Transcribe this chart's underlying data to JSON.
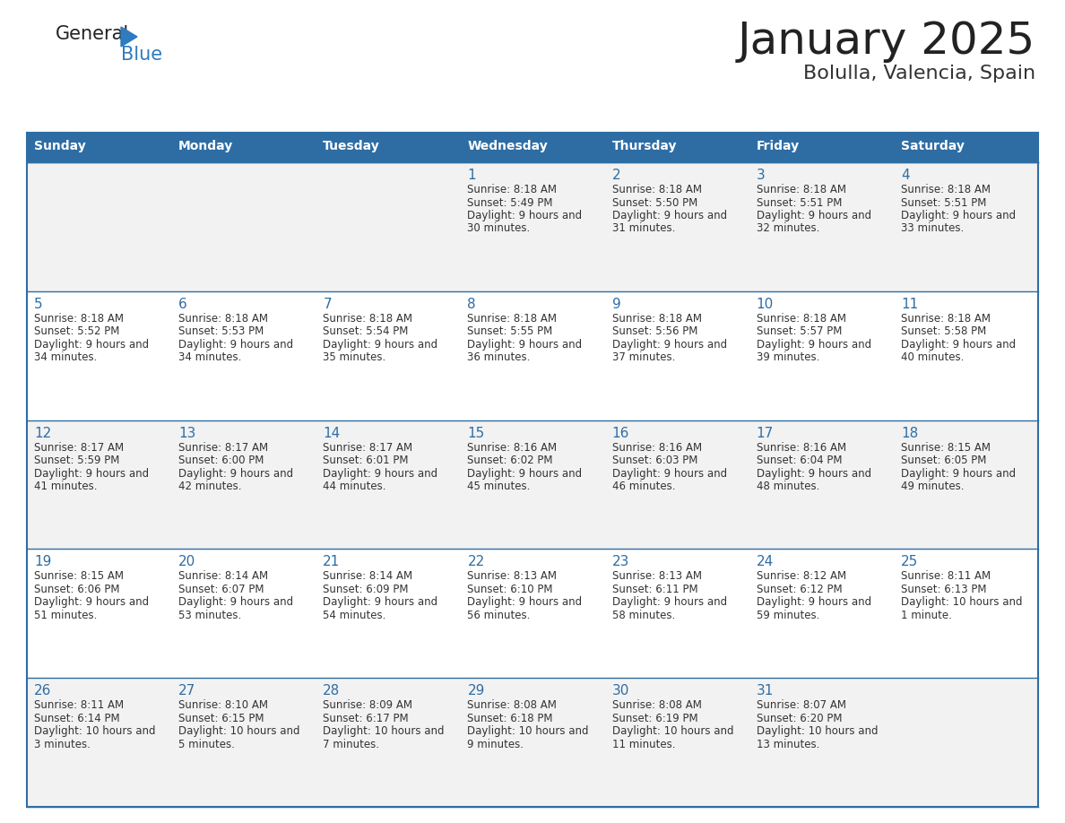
{
  "title": "January 2025",
  "subtitle": "Bolulla, Valencia, Spain",
  "header_bg": "#2e6da4",
  "header_text": "#ffffff",
  "cell_bg_gray": "#f2f2f2",
  "cell_bg_white": "#ffffff",
  "border_color": "#2e6da4",
  "day_names": [
    "Sunday",
    "Monday",
    "Tuesday",
    "Wednesday",
    "Thursday",
    "Friday",
    "Saturday"
  ],
  "title_color": "#222222",
  "subtitle_color": "#333333",
  "day_number_color": "#2e6da4",
  "cell_text_color": "#333333",
  "logo_text_color": "#222222",
  "logo_blue_color": "#2e7bbf",
  "calendar": [
    [
      null,
      null,
      null,
      {
        "day": "1",
        "sunrise": "8:18 AM",
        "sunset": "5:49 PM",
        "daylight": "9 hours and 30 minutes."
      },
      {
        "day": "2",
        "sunrise": "8:18 AM",
        "sunset": "5:50 PM",
        "daylight": "9 hours and 31 minutes."
      },
      {
        "day": "3",
        "sunrise": "8:18 AM",
        "sunset": "5:51 PM",
        "daylight": "9 hours and 32 minutes."
      },
      {
        "day": "4",
        "sunrise": "8:18 AM",
        "sunset": "5:51 PM",
        "daylight": "9 hours and 33 minutes."
      }
    ],
    [
      {
        "day": "5",
        "sunrise": "8:18 AM",
        "sunset": "5:52 PM",
        "daylight": "9 hours and 34 minutes."
      },
      {
        "day": "6",
        "sunrise": "8:18 AM",
        "sunset": "5:53 PM",
        "daylight": "9 hours and 34 minutes."
      },
      {
        "day": "7",
        "sunrise": "8:18 AM",
        "sunset": "5:54 PM",
        "daylight": "9 hours and 35 minutes."
      },
      {
        "day": "8",
        "sunrise": "8:18 AM",
        "sunset": "5:55 PM",
        "daylight": "9 hours and 36 minutes."
      },
      {
        "day": "9",
        "sunrise": "8:18 AM",
        "sunset": "5:56 PM",
        "daylight": "9 hours and 37 minutes."
      },
      {
        "day": "10",
        "sunrise": "8:18 AM",
        "sunset": "5:57 PM",
        "daylight": "9 hours and 39 minutes."
      },
      {
        "day": "11",
        "sunrise": "8:18 AM",
        "sunset": "5:58 PM",
        "daylight": "9 hours and 40 minutes."
      }
    ],
    [
      {
        "day": "12",
        "sunrise": "8:17 AM",
        "sunset": "5:59 PM",
        "daylight": "9 hours and 41 minutes."
      },
      {
        "day": "13",
        "sunrise": "8:17 AM",
        "sunset": "6:00 PM",
        "daylight": "9 hours and 42 minutes."
      },
      {
        "day": "14",
        "sunrise": "8:17 AM",
        "sunset": "6:01 PM",
        "daylight": "9 hours and 44 minutes."
      },
      {
        "day": "15",
        "sunrise": "8:16 AM",
        "sunset": "6:02 PM",
        "daylight": "9 hours and 45 minutes."
      },
      {
        "day": "16",
        "sunrise": "8:16 AM",
        "sunset": "6:03 PM",
        "daylight": "9 hours and 46 minutes."
      },
      {
        "day": "17",
        "sunrise": "8:16 AM",
        "sunset": "6:04 PM",
        "daylight": "9 hours and 48 minutes."
      },
      {
        "day": "18",
        "sunrise": "8:15 AM",
        "sunset": "6:05 PM",
        "daylight": "9 hours and 49 minutes."
      }
    ],
    [
      {
        "day": "19",
        "sunrise": "8:15 AM",
        "sunset": "6:06 PM",
        "daylight": "9 hours and 51 minutes."
      },
      {
        "day": "20",
        "sunrise": "8:14 AM",
        "sunset": "6:07 PM",
        "daylight": "9 hours and 53 minutes."
      },
      {
        "day": "21",
        "sunrise": "8:14 AM",
        "sunset": "6:09 PM",
        "daylight": "9 hours and 54 minutes."
      },
      {
        "day": "22",
        "sunrise": "8:13 AM",
        "sunset": "6:10 PM",
        "daylight": "9 hours and 56 minutes."
      },
      {
        "day": "23",
        "sunrise": "8:13 AM",
        "sunset": "6:11 PM",
        "daylight": "9 hours and 58 minutes."
      },
      {
        "day": "24",
        "sunrise": "8:12 AM",
        "sunset": "6:12 PM",
        "daylight": "9 hours and 59 minutes."
      },
      {
        "day": "25",
        "sunrise": "8:11 AM",
        "sunset": "6:13 PM",
        "daylight": "10 hours and 1 minute."
      }
    ],
    [
      {
        "day": "26",
        "sunrise": "8:11 AM",
        "sunset": "6:14 PM",
        "daylight": "10 hours and 3 minutes."
      },
      {
        "day": "27",
        "sunrise": "8:10 AM",
        "sunset": "6:15 PM",
        "daylight": "10 hours and 5 minutes."
      },
      {
        "day": "28",
        "sunrise": "8:09 AM",
        "sunset": "6:17 PM",
        "daylight": "10 hours and 7 minutes."
      },
      {
        "day": "29",
        "sunrise": "8:08 AM",
        "sunset": "6:18 PM",
        "daylight": "10 hours and 9 minutes."
      },
      {
        "day": "30",
        "sunrise": "8:08 AM",
        "sunset": "6:19 PM",
        "daylight": "10 hours and 11 minutes."
      },
      {
        "day": "31",
        "sunrise": "8:07 AM",
        "sunset": "6:20 PM",
        "daylight": "10 hours and 13 minutes."
      },
      null
    ]
  ]
}
